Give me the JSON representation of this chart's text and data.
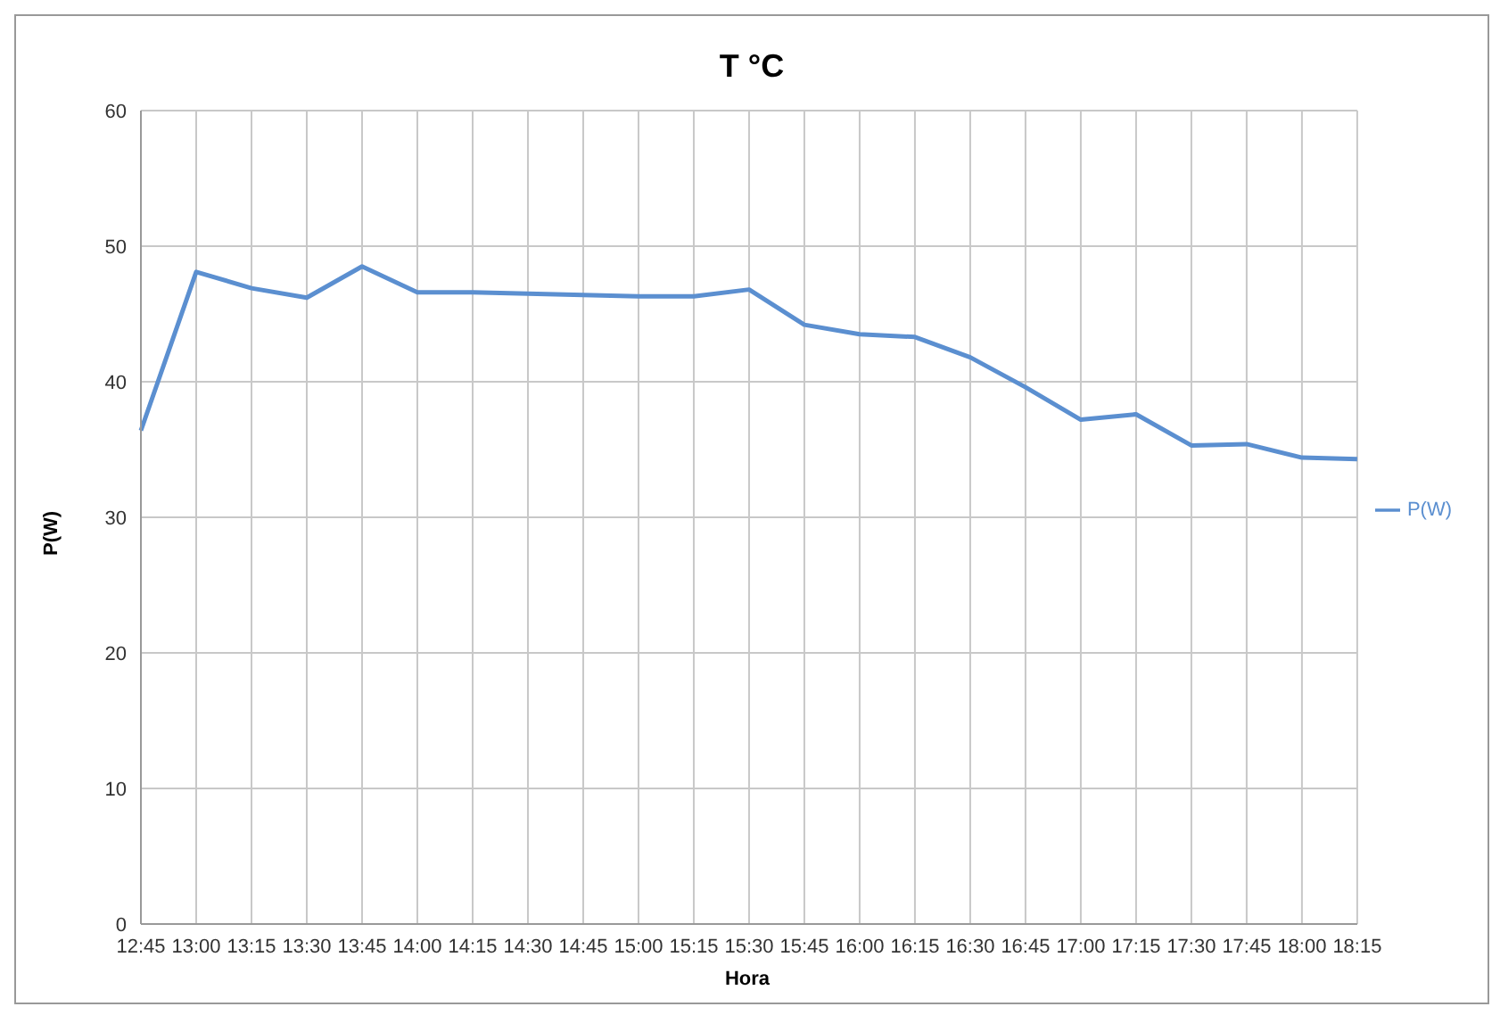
{
  "chart_data": {
    "type": "line",
    "title": "T °C",
    "xlabel": "Hora",
    "ylabel": "P(W)",
    "categories": [
      "12:45",
      "13:00",
      "13:15",
      "13:30",
      "13:45",
      "14:00",
      "14:15",
      "14:30",
      "14:45",
      "15:00",
      "15:15",
      "15:30",
      "15:45",
      "16:00",
      "16:15",
      "16:30",
      "16:45",
      "17:00",
      "17:15",
      "17:30",
      "17:45",
      "18:00",
      "18:15"
    ],
    "series": [
      {
        "name": "P(W)",
        "color": "#5b8fd0",
        "values": [
          36.4,
          48.1,
          46.9,
          46.2,
          48.5,
          46.6,
          46.6,
          46.5,
          46.4,
          46.3,
          46.3,
          46.8,
          44.2,
          43.5,
          43.3,
          41.8,
          39.6,
          37.2,
          37.6,
          35.3,
          35.4,
          34.4,
          34.3
        ]
      }
    ],
    "ylim": [
      0,
      60
    ],
    "yticks": [
      0,
      10,
      20,
      30,
      40,
      50,
      60
    ],
    "grid": true,
    "legend": "right",
    "marker": "none"
  }
}
